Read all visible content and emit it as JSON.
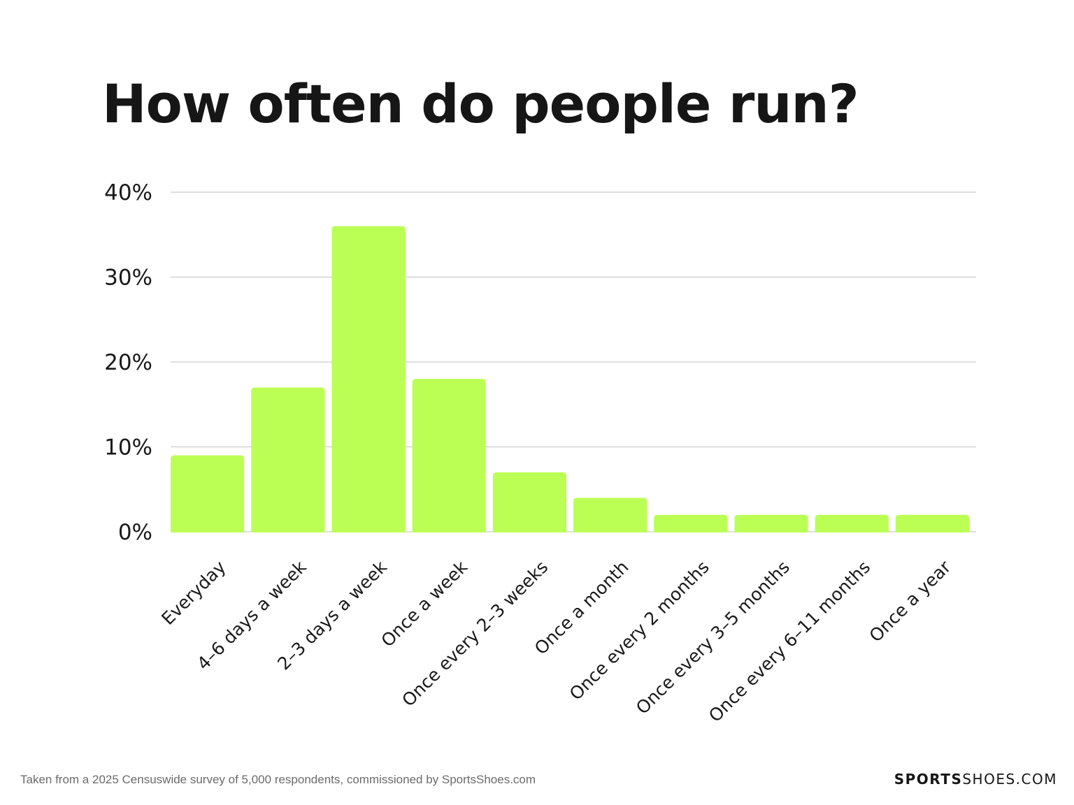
{
  "chart_data": {
    "type": "bar",
    "title": "How often do people run?",
    "categories": [
      "Everyday",
      "4–6 days a week",
      "2–3 days a week",
      "Once a week",
      "Once every 2–3 weeks",
      "Once a month",
      "Once every 2 months",
      "Once every 3–5 months",
      "Once every 6–11 months",
      "Once a year"
    ],
    "values": [
      9,
      17,
      36,
      18,
      7,
      4,
      2,
      2,
      2,
      2
    ],
    "ylim": [
      0,
      40
    ],
    "yticks": [
      0,
      10,
      20,
      30,
      40
    ],
    "ytick_labels": [
      "0%",
      "10%",
      "20%",
      "30%",
      "40%"
    ],
    "xlabel": "",
    "ylabel": "",
    "grid": true,
    "bar_color": "#bbff55",
    "grid_color": "#cccccc"
  },
  "footer": {
    "source": "Taken from a 2025 Censuswide survey of 5,000 respondents, commissioned by SportsShoes.com"
  },
  "brand": {
    "bold": "SPORTS",
    "regular": "SHOES.COM"
  }
}
